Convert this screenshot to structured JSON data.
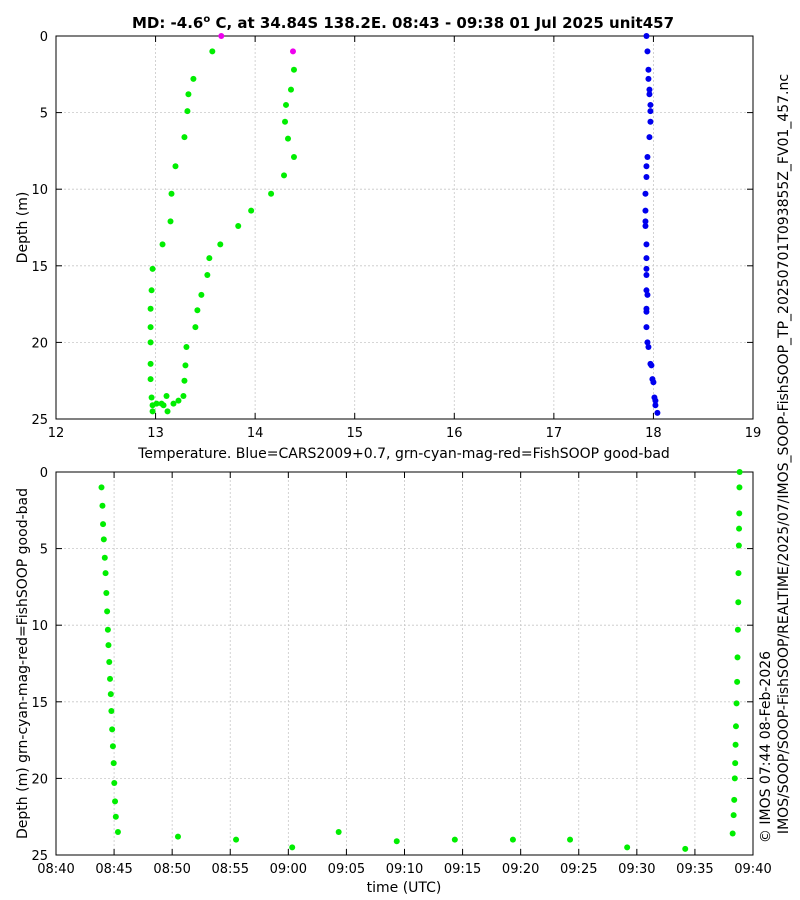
{
  "figure": {
    "title_prefix": "MD: -4.6",
    "title_degree": "o",
    "title_suffix": " C, at 34.84S 138.2E. 08:43 - 09:38 01 Jul 2025 unit457",
    "side_text_1": "IMOS/SOOP/SOOP-FishSOOP/REALTIME/2025/07/IMOS_SOOP-FishSOOP_TP_20250701T093855Z_FV01_457.nc",
    "side_text_2": "© IMOS 07:44 08-Feb-2026"
  },
  "colors": {
    "good": "#00ee00",
    "flagged": "#ee00ee",
    "climatology": "#0000ee"
  },
  "chart_data": [
    {
      "type": "scatter",
      "xlabel": "Temperature. Blue=CARS2009+0.7, grn-cyan-mag-red=FishSOOP good-bad",
      "ylabel": "Depth (m)",
      "xlim": [
        12,
        19
      ],
      "ylim": [
        0,
        25
      ],
      "y_reversed": true,
      "grid": true,
      "x_ticks": [
        "12",
        "13",
        "14",
        "15",
        "16",
        "17",
        "18",
        "19"
      ],
      "y_ticks": [
        "0",
        "5",
        "10",
        "15",
        "20",
        "25"
      ],
      "series": [
        {
          "color": "climatology",
          "points": [
            [
              17.93,
              0
            ],
            [
              17.94,
              1
            ],
            [
              17.95,
              2.2
            ],
            [
              17.95,
              2.8
            ],
            [
              17.96,
              3.5
            ],
            [
              17.96,
              3.8
            ],
            [
              17.97,
              4.5
            ],
            [
              17.97,
              4.9
            ],
            [
              17.97,
              5.6
            ],
            [
              17.96,
              6.6
            ],
            [
              17.94,
              7.9
            ],
            [
              17.93,
              8.5
            ],
            [
              17.93,
              9.2
            ],
            [
              17.92,
              10.3
            ],
            [
              17.92,
              11.4
            ],
            [
              17.92,
              12.1
            ],
            [
              17.92,
              12.4
            ],
            [
              17.93,
              13.6
            ],
            [
              17.93,
              14.5
            ],
            [
              17.93,
              15.2
            ],
            [
              17.93,
              15.6
            ],
            [
              17.93,
              16.6
            ],
            [
              17.94,
              16.9
            ],
            [
              17.93,
              17.8
            ],
            [
              17.93,
              18.0
            ],
            [
              17.93,
              19.0
            ],
            [
              17.94,
              20.0
            ],
            [
              17.95,
              20.3
            ],
            [
              17.97,
              21.4
            ],
            [
              17.98,
              21.5
            ],
            [
              17.99,
              22.4
            ],
            [
              18.0,
              22.6
            ],
            [
              18.01,
              23.6
            ],
            [
              18.02,
              23.8
            ],
            [
              18.02,
              24.1
            ],
            [
              18.04,
              24.6
            ]
          ]
        },
        {
          "color": "good",
          "points": [
            [
              13.57,
              1
            ],
            [
              13.38,
              2.8
            ],
            [
              13.33,
              3.8
            ],
            [
              13.32,
              4.9
            ],
            [
              13.29,
              6.6
            ],
            [
              13.2,
              8.5
            ],
            [
              13.16,
              10.3
            ],
            [
              13.15,
              12.1
            ],
            [
              13.07,
              13.6
            ],
            [
              12.97,
              15.2
            ],
            [
              12.96,
              16.6
            ],
            [
              12.95,
              17.8
            ],
            [
              12.95,
              19.0
            ],
            [
              12.95,
              20.0
            ],
            [
              12.95,
              21.4
            ],
            [
              12.95,
              22.4
            ],
            [
              12.96,
              23.6
            ],
            [
              12.97,
              24.1
            ],
            [
              12.97,
              24.5
            ],
            [
              13.01,
              24.0
            ],
            [
              13.06,
              24.0
            ],
            [
              13.08,
              24.1
            ],
            [
              13.12,
              24.5
            ],
            [
              13.11,
              23.5
            ],
            [
              13.18,
              24.0
            ],
            [
              13.23,
              23.8
            ],
            [
              13.28,
              23.5
            ],
            [
              13.29,
              22.5
            ],
            [
              13.3,
              21.5
            ],
            [
              13.31,
              20.3
            ],
            [
              13.4,
              19.0
            ],
            [
              13.42,
              17.9
            ],
            [
              13.46,
              16.9
            ],
            [
              13.52,
              15.6
            ],
            [
              13.54,
              14.5
            ],
            [
              13.65,
              13.6
            ],
            [
              13.83,
              12.4
            ],
            [
              13.96,
              11.4
            ],
            [
              14.16,
              10.3
            ],
            [
              14.29,
              9.1
            ],
            [
              14.39,
              7.9
            ],
            [
              14.33,
              6.7
            ],
            [
              14.3,
              5.6
            ],
            [
              14.31,
              4.5
            ],
            [
              14.36,
              3.5
            ],
            [
              14.39,
              2.2
            ]
          ]
        },
        {
          "color": "flagged",
          "points": [
            [
              13.66,
              0
            ],
            [
              14.38,
              1
            ]
          ]
        }
      ]
    },
    {
      "type": "scatter",
      "xlabel": "time (UTC)",
      "ylabel": "Depth (m) grn-cyan-mag-red=FishSOOP good-bad",
      "xlim": [
        "08:40",
        "09:40"
      ],
      "ylim": [
        0,
        25
      ],
      "y_reversed": true,
      "grid": true,
      "x_ticks": [
        "08:40",
        "08:45",
        "08:50",
        "08:55",
        "09:00",
        "09:05",
        "09:10",
        "09:15",
        "09:20",
        "09:25",
        "09:30",
        "09:35",
        "09:40"
      ],
      "y_ticks": [
        "0",
        "5",
        "10",
        "15",
        "20",
        "25"
      ],
      "series": [
        {
          "color": "good",
          "points": [
            [
              "08:43:55",
              1.0
            ],
            [
              "08:44:00",
              2.2
            ],
            [
              "08:44:03",
              3.4
            ],
            [
              "08:44:07",
              4.4
            ],
            [
              "08:44:12",
              5.6
            ],
            [
              "08:44:16",
              6.6
            ],
            [
              "08:44:20",
              7.9
            ],
            [
              "08:44:24",
              9.1
            ],
            [
              "08:44:28",
              10.3
            ],
            [
              "08:44:31",
              11.3
            ],
            [
              "08:44:35",
              12.4
            ],
            [
              "08:44:39",
              13.5
            ],
            [
              "08:44:43",
              14.5
            ],
            [
              "08:44:46",
              15.6
            ],
            [
              "08:44:50",
              16.8
            ],
            [
              "08:44:54",
              17.9
            ],
            [
              "08:44:58",
              19.0
            ],
            [
              "08:45:01",
              20.3
            ],
            [
              "08:45:05",
              21.5
            ],
            [
              "08:45:09",
              22.5
            ],
            [
              "08:45:20",
              23.5
            ],
            [
              "08:50:30",
              23.8
            ],
            [
              "08:55:30",
              24.0
            ],
            [
              "09:00:20",
              24.5
            ],
            [
              "09:04:20",
              23.5
            ],
            [
              "09:09:20",
              24.1
            ],
            [
              "09:14:20",
              24.0
            ],
            [
              "09:19:20",
              24.0
            ],
            [
              "09:24:15",
              24.0
            ],
            [
              "09:29:10",
              24.5
            ],
            [
              "09:34:10",
              24.6
            ],
            [
              "09:38:15",
              23.6
            ],
            [
              "09:38:20",
              22.4
            ],
            [
              "09:38:23",
              21.4
            ],
            [
              "09:38:26",
              20.0
            ],
            [
              "09:38:28",
              19.0
            ],
            [
              "09:38:30",
              17.8
            ],
            [
              "09:38:32",
              16.6
            ],
            [
              "09:38:35",
              15.1
            ],
            [
              "09:38:38",
              13.7
            ],
            [
              "09:38:40",
              12.1
            ],
            [
              "09:38:42",
              10.3
            ],
            [
              "09:38:44",
              8.5
            ],
            [
              "09:38:45",
              6.6
            ],
            [
              "09:38:47",
              4.8
            ],
            [
              "09:38:48",
              3.7
            ],
            [
              "09:38:49",
              2.7
            ],
            [
              "09:38:50",
              1.0
            ],
            [
              "09:38:51",
              0
            ]
          ]
        }
      ]
    }
  ]
}
